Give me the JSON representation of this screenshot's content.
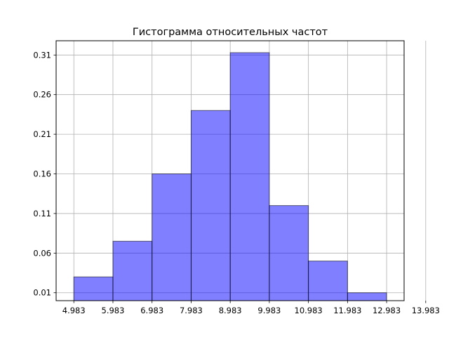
{
  "chart_data": {
    "type": "bar",
    "title": "Гистограмма относительных частот",
    "xlabel": "",
    "ylabel": "",
    "bin_edges": [
      4.983,
      5.983,
      6.983,
      7.983,
      8.983,
      9.983,
      10.983,
      11.983,
      12.983
    ],
    "values": [
      0.03,
      0.075,
      0.16,
      0.24,
      0.313,
      0.12,
      0.05,
      0.01
    ],
    "xticks": [
      "4.983",
      "5.983",
      "6.983",
      "7.983",
      "8.983",
      "9.983",
      "10.983",
      "11.983",
      "12.983",
      "13.983"
    ],
    "xtick_values": [
      4.983,
      5.983,
      6.983,
      7.983,
      8.983,
      9.983,
      10.983,
      11.983,
      12.983,
      13.983
    ],
    "yticks": [
      "0.01",
      "0.06",
      "0.11",
      "0.16",
      "0.21",
      "0.26",
      "0.31"
    ],
    "ytick_values": [
      0.01,
      0.06,
      0.11,
      0.16,
      0.21,
      0.26,
      0.31
    ],
    "xlim": [
      4.53,
      13.43
    ],
    "ylim": [
      0.0,
      0.328
    ],
    "grid": true,
    "colors": {
      "bar_fill": "#0000ff",
      "bar_opacity": 0.5,
      "bar_edge": "#000000",
      "grid": "#b0b0b0",
      "axes": "#000000"
    }
  }
}
